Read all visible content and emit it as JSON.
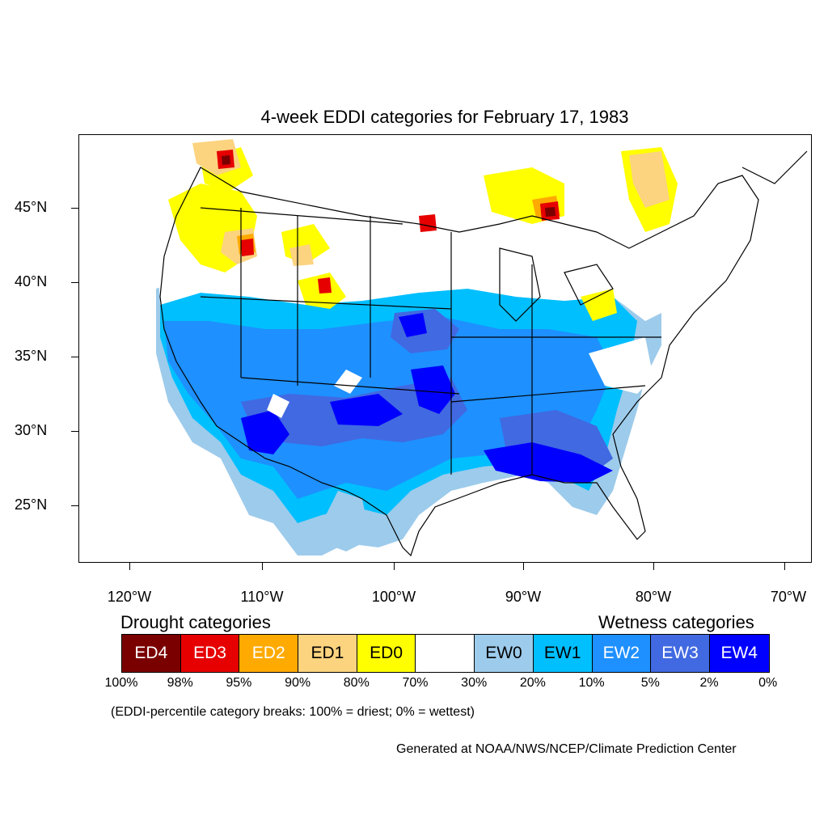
{
  "title": "4-week EDDI categories for February 17, 1983",
  "map": {
    "lat_labels": [
      "45°N",
      "40°N",
      "35°N",
      "30°N",
      "25°N"
    ],
    "lon_labels": [
      "120°W",
      "110°W",
      "100°W",
      "90°W",
      "80°W",
      "70°W"
    ]
  },
  "legend": {
    "drought_heading": "Drought categories",
    "wetness_heading": "Wetness categories",
    "categories": [
      {
        "label": "ED4",
        "color": "#7a0000",
        "text_color": "#ffffff"
      },
      {
        "label": "ED3",
        "color": "#e60000",
        "text_color": "#ffffff"
      },
      {
        "label": "ED2",
        "color": "#ffaa00",
        "text_color": "#ffffff"
      },
      {
        "label": "ED1",
        "color": "#fcd37f",
        "text_color": "#000000"
      },
      {
        "label": "ED0",
        "color": "#ffff00",
        "text_color": "#000000"
      },
      {
        "label": "",
        "color": "#ffffff",
        "text_color": "#000000"
      },
      {
        "label": "EW0",
        "color": "#9dcbeb",
        "text_color": "#000000"
      },
      {
        "label": "EW1",
        "color": "#00bfff",
        "text_color": "#000000"
      },
      {
        "label": "EW2",
        "color": "#1e90ff",
        "text_color": "#ffffff"
      },
      {
        "label": "EW3",
        "color": "#4169e1",
        "text_color": "#ffffff"
      },
      {
        "label": "EW4",
        "color": "#0000ff",
        "text_color": "#ffffff"
      }
    ],
    "breaks": [
      "100%",
      "98%",
      "95%",
      "90%",
      "80%",
      "70%",
      "30%",
      "20%",
      "10%",
      "5%",
      "2%",
      "0%"
    ],
    "note": "(EDDI-percentile category breaks: 100% = driest; 0% = wettest)"
  },
  "credit": "Generated at NOAA/NWS/NCEP/Climate Prediction Center"
}
